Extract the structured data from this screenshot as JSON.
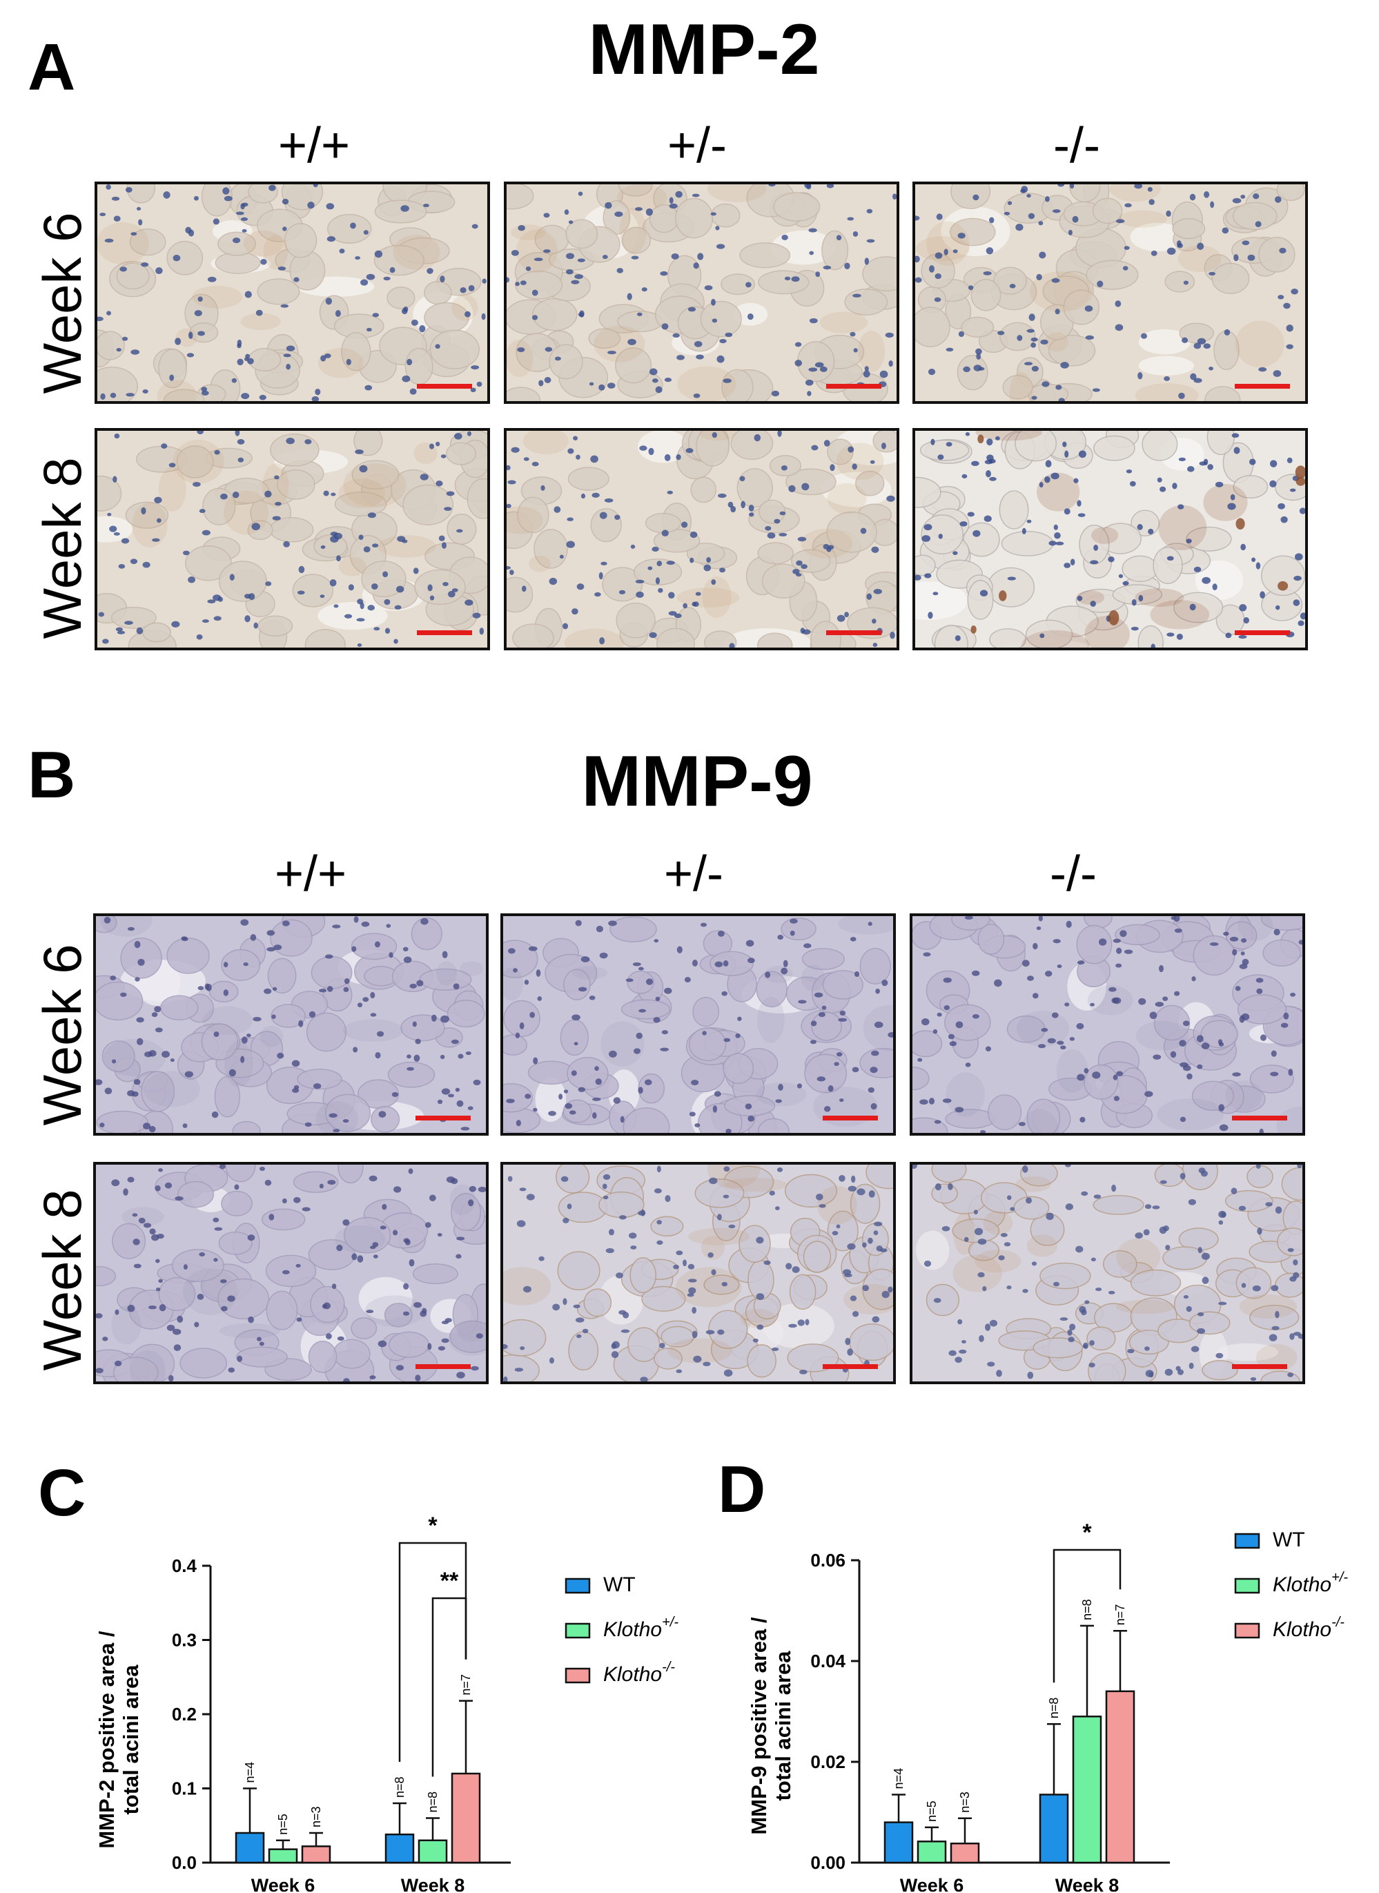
{
  "panels": {
    "A": {
      "letter": "A",
      "title": "MMP-2",
      "genotypes": [
        "+/+",
        "+/-",
        "-/-"
      ],
      "rows": [
        "Week 6",
        "Week 8"
      ]
    },
    "B": {
      "letter": "B",
      "title": "MMP-9",
      "genotypes": [
        "+/+",
        "+/-",
        "-/-"
      ],
      "rows": [
        "Week 6",
        "Week 8"
      ]
    },
    "C": {
      "letter": "C"
    },
    "D": {
      "letter": "D"
    }
  },
  "colors": {
    "wt": "#1e90e6",
    "het": "#6ff0a0",
    "ko": "#f39a9a",
    "scalebar": "#e41b1b"
  },
  "chart_data": [
    {
      "type": "bar",
      "panel": "C",
      "ylabel": [
        "MMP-2 positive area /",
        "total acini area"
      ],
      "categories": [
        "Week 6",
        "Week 8"
      ],
      "ylim": [
        0,
        0.4
      ],
      "yticks": [
        "0.0",
        "0.1",
        "0.2",
        "0.3",
        "0.4"
      ],
      "legend": [
        "WT",
        "Klotho",
        "Klotho"
      ],
      "legend_sup": [
        "",
        "+/-",
        "-/-"
      ],
      "series": [
        {
          "name": "WT",
          "values": [
            0.04,
            0.038
          ],
          "errors": [
            0.06,
            0.042
          ],
          "n": [
            "n=4",
            "n=8"
          ]
        },
        {
          "name": "Klotho+/-",
          "values": [
            0.018,
            0.03
          ],
          "errors": [
            0.012,
            0.03
          ],
          "n": [
            "n=5",
            "n=8"
          ]
        },
        {
          "name": "Klotho-/-",
          "values": [
            0.022,
            0.12
          ],
          "errors": [
            0.018,
            0.098
          ],
          "n": [
            "n=3",
            "n=7"
          ]
        }
      ],
      "significance": [
        {
          "from": "WT",
          "to": "Klotho-/-",
          "category": "Week 8",
          "label": "*"
        },
        {
          "from": "Klotho+/-",
          "to": "Klotho-/-",
          "category": "Week 8",
          "label": "**"
        }
      ]
    },
    {
      "type": "bar",
      "panel": "D",
      "ylabel": [
        "MMP-9 positive area /",
        "total acini area"
      ],
      "categories": [
        "Week 6",
        "Week 8"
      ],
      "ylim": [
        0,
        0.06
      ],
      "yticks": [
        "0.00",
        "0.02",
        "0.04",
        "0.06"
      ],
      "legend": [
        "WT",
        "Klotho",
        "Klotho"
      ],
      "legend_sup": [
        "",
        "+/-",
        "-/-"
      ],
      "series": [
        {
          "name": "WT",
          "values": [
            0.008,
            0.0135
          ],
          "errors": [
            0.0055,
            0.014
          ],
          "n": [
            "n=4",
            "n=8"
          ]
        },
        {
          "name": "Klotho+/-",
          "values": [
            0.0042,
            0.029
          ],
          "errors": [
            0.0028,
            0.018
          ],
          "n": [
            "n=5",
            "n=8"
          ]
        },
        {
          "name": "Klotho-/-",
          "values": [
            0.0038,
            0.034
          ],
          "errors": [
            0.005,
            0.012
          ],
          "n": [
            "n=3",
            "n=7"
          ]
        }
      ],
      "significance": [
        {
          "from": "WT",
          "to": "Klotho-/-",
          "category": "Week 8",
          "label": "*"
        }
      ]
    }
  ]
}
